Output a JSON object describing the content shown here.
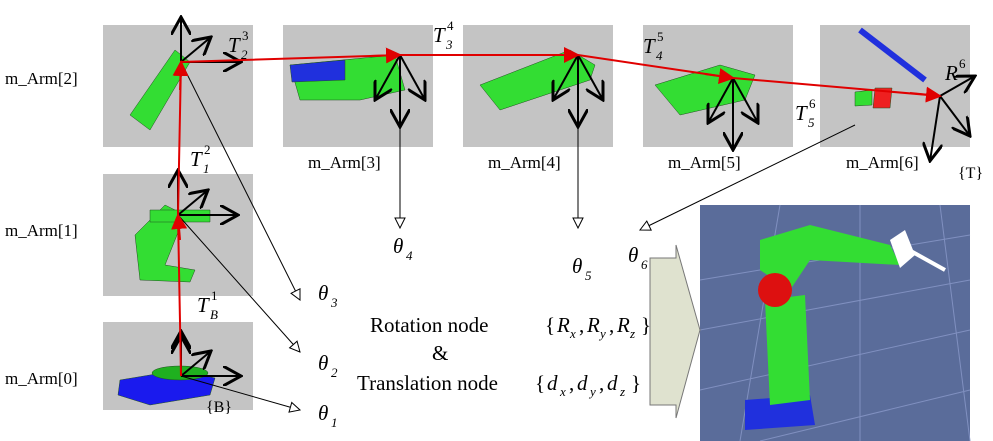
{
  "panels": [
    {
      "label": "m_Arm[0]"
    },
    {
      "label": "m_Arm[1]"
    },
    {
      "label": "m_Arm[2]"
    },
    {
      "label": "m_Arm[3]"
    },
    {
      "label": "m_Arm[4]"
    },
    {
      "label": "m_Arm[5]"
    },
    {
      "label": "m_Arm[6]"
    }
  ],
  "transforms": [
    {
      "base": "T",
      "sub": "B",
      "sup": "1"
    },
    {
      "base": "T",
      "sub": "1",
      "sup": "2"
    },
    {
      "base": "T",
      "sub": "2",
      "sup": "3"
    },
    {
      "base": "T",
      "sub": "3",
      "sup": "4"
    },
    {
      "base": "T",
      "sub": "4",
      "sup": "5"
    },
    {
      "base": "T",
      "sub": "5",
      "sup": "6"
    }
  ],
  "end_rotation": {
    "base": "R",
    "sup": "6"
  },
  "frames": {
    "base": "{B}",
    "tool": "{T}"
  },
  "angles": [
    {
      "base": "θ",
      "sub": "1"
    },
    {
      "base": "θ",
      "sub": "2"
    },
    {
      "base": "θ",
      "sub": "3"
    },
    {
      "base": "θ",
      "sub": "4"
    },
    {
      "base": "θ",
      "sub": "5"
    },
    {
      "base": "θ",
      "sub": "6"
    }
  ],
  "nodes": {
    "rotation": {
      "label": "Rotation node",
      "symbols": [
        {
          "base": "R",
          "sub": "x"
        },
        {
          "base": "R",
          "sub": "y"
        },
        {
          "base": "R",
          "sub": "z"
        }
      ]
    },
    "joiner": "&",
    "translation": {
      "label": "Translation node",
      "symbols": [
        {
          "base": "d",
          "sub": "x"
        },
        {
          "base": "d",
          "sub": "y"
        },
        {
          "base": "d",
          "sub": "z"
        }
      ]
    }
  }
}
